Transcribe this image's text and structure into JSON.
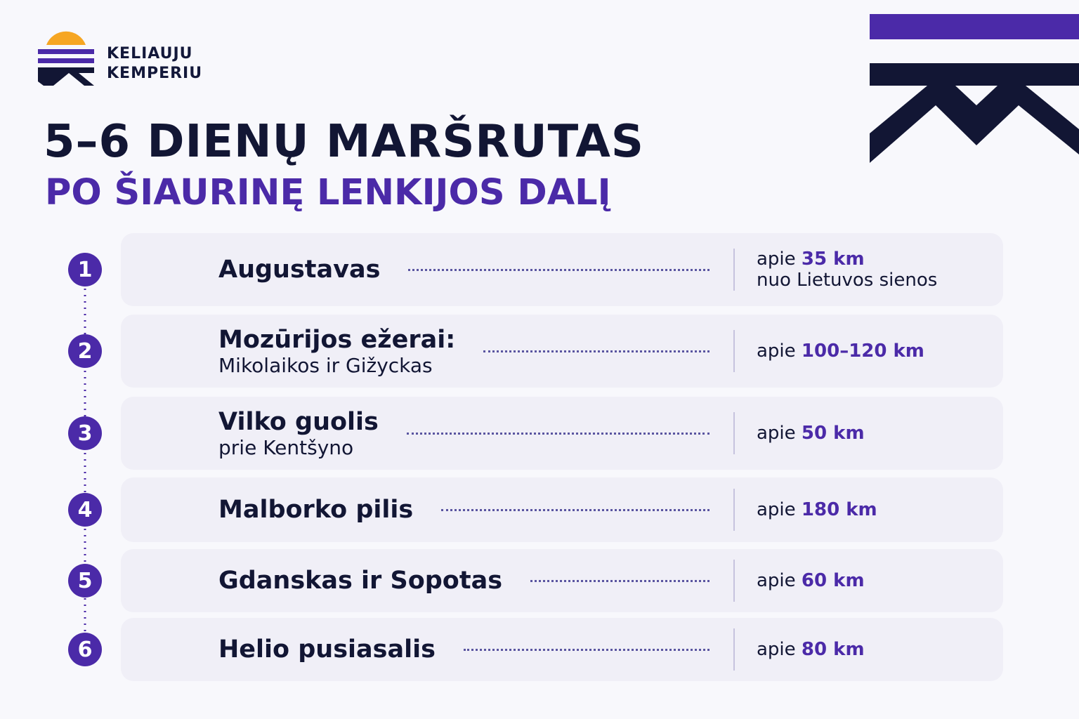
{
  "logo": {
    "line1": "KELIAUJU",
    "line2": "KEMPERIU"
  },
  "header": {
    "title": "5–6 DIENŲ MARŠRUTAS",
    "subtitle": "PO ŠIAURINĘ LENKIJOS DALĮ"
  },
  "stops": [
    {
      "number": "1",
      "name": "Augustavas",
      "distance_prefix": "apie",
      "distance": "35 km",
      "distance_note": "nuo Lietuvos sienos"
    },
    {
      "number": "2",
      "name": "Mozūrijos ežerai:",
      "detail": "Mikolaikos ir Gižyckas",
      "distance_prefix": "apie",
      "distance": "100–120 km"
    },
    {
      "number": "3",
      "name": "Vilko guolis",
      "detail": "prie Kentšyno",
      "distance_prefix": "apie",
      "distance": "50 km"
    },
    {
      "number": "4",
      "name": "Malborko pilis",
      "distance_prefix": "apie",
      "distance": "180 km"
    },
    {
      "number": "5",
      "name": "Gdanskas ir Sopotas",
      "distance_prefix": "apie",
      "distance": "60 km"
    },
    {
      "number": "6",
      "name": "Helio pusiasalis",
      "distance_prefix": "apie",
      "distance": "80 km"
    }
  ]
}
